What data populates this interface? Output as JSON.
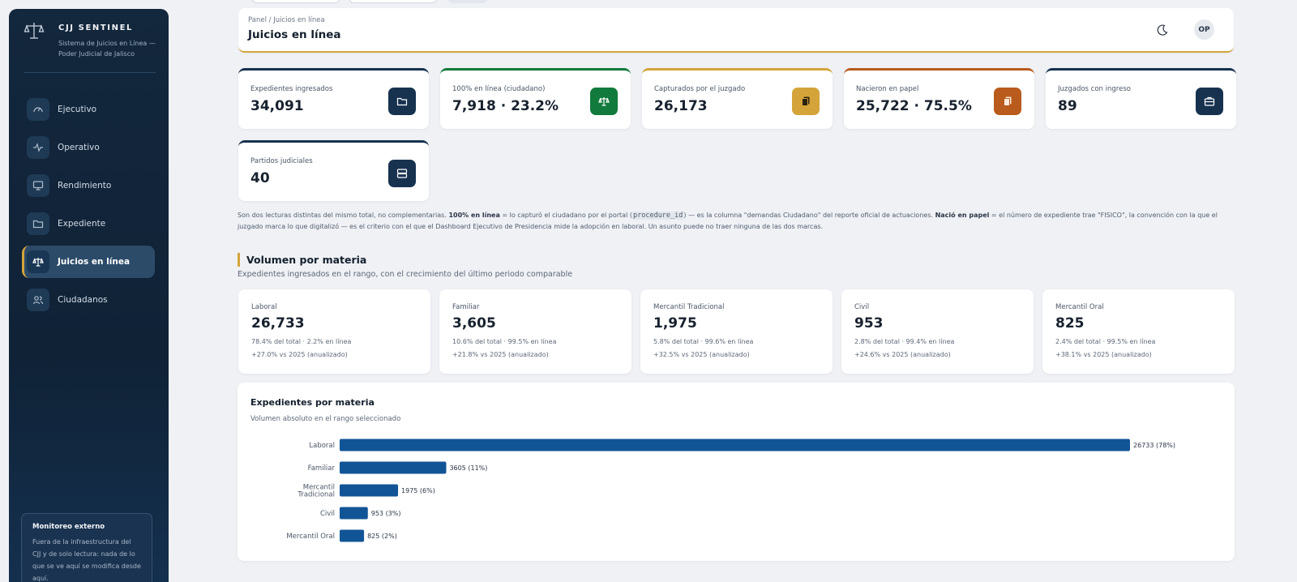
{
  "sidebar": {
    "brand_name": "CJJ SENTINEL",
    "brand_sub": "Sistema de Juicios en Línea — Poder Judicial de Jalisco",
    "items": [
      {
        "label": "Ejecutivo",
        "icon": "gauge-icon"
      },
      {
        "label": "Operativo",
        "icon": "pulse-icon"
      },
      {
        "label": "Rendimiento",
        "icon": "monitor-icon"
      },
      {
        "label": "Expediente",
        "icon": "folder-icon"
      },
      {
        "label": "Juicios en línea",
        "icon": "scale-icon",
        "active": true
      },
      {
        "label": "Ciudadanos",
        "icon": "users-icon"
      }
    ],
    "note": {
      "title": "Monitoreo externo",
      "text": "Fuera de la infraestructura del CJJ y de solo lectura: nada de lo que se ve aquí se modifica desde aquí."
    }
  },
  "header": {
    "breadcrumb": "Panel / Juicios en línea",
    "title": "Juicios en línea",
    "avatar": "OP"
  },
  "kpis": [
    {
      "label": "Expedientes ingresados",
      "value": "34,091",
      "accent": "#17324f",
      "icon": "folder-icon"
    },
    {
      "label": "100% en línea (ciudadano)",
      "value": "7,918 · 23.2%",
      "accent": "#127a3c",
      "icon": "scale-icon"
    },
    {
      "label": "Capturados por el juzgado",
      "value": "26,173",
      "accent": "#d4a43a",
      "icon": "copy-icon"
    },
    {
      "label": "Nacieron en papel",
      "value": "25,722 · 75.5%",
      "accent": "#b95b1c",
      "icon": "copy-icon"
    },
    {
      "label": "Juzgados con ingreso",
      "value": "89",
      "accent": "#17324f",
      "icon": "briefcase-icon"
    },
    {
      "label": "Partidos judiciales",
      "value": "40",
      "accent": "#17324f",
      "icon": "server-icon"
    }
  ],
  "explain": {
    "p1": "Son dos lecturas distintas del mismo total, no complementarias. ",
    "b1": "100% en línea",
    "p2": " = lo capturó el ciudadano por el portal (",
    "code": "procedure_id",
    "p3": ") — es la columna \"demandas Ciudadano\" del reporte oficial de actuaciones. ",
    "b2": "Nació en papel",
    "p4": " = el número de expediente trae \"FISICO\", la convención con la que el juzgado marca lo que digitalizó — es el criterio con el que el Dashboard Ejecutivo de Presidencia mide la adopción en laboral. Un asunto puede no traer ninguna de las dos marcas."
  },
  "section": {
    "title": "Volumen por materia",
    "subtitle": "Expedientes ingresados en el rango, con el crecimiento del último periodo comparable"
  },
  "materias": [
    {
      "label": "Laboral",
      "value": "26,733",
      "line1": "78.4% del total · 2.2% en línea",
      "line2": "+27.0% vs 2025 (anualizado)"
    },
    {
      "label": "Familiar",
      "value": "3,605",
      "line1": "10.6% del total · 99.5% en línea",
      "line2": "+21.8% vs 2025 (anualizado)"
    },
    {
      "label": "Mercantil Tradicional",
      "value": "1,975",
      "line1": "5.8% del total · 99.6% en línea",
      "line2": "+32.5% vs 2025 (anualizado)"
    },
    {
      "label": "Civil",
      "value": "953",
      "line1": "2.8% del total · 99.4% en línea",
      "line2": "+24.6% vs 2025 (anualizado)"
    },
    {
      "label": "Mercantil Oral",
      "value": "825",
      "line1": "2.4% del total · 99.5% en línea",
      "line2": "+38.1% vs 2025 (anualizado)"
    }
  ],
  "chart": {
    "title": "Expedientes por materia",
    "subtitle": "Volumen absoluto en el rango seleccionado"
  },
  "chart_data": {
    "type": "bar",
    "orientation": "horizontal",
    "categories": [
      [
        "Laboral"
      ],
      [
        "Familiar"
      ],
      [
        "Mercantil",
        "Tradicional"
      ],
      [
        "Civil"
      ],
      [
        "Mercantil Oral"
      ]
    ],
    "values": [
      26733,
      3605,
      1975,
      953,
      825
    ],
    "data_labels": [
      "26733 (78%)",
      "3605 (11%)",
      "1975 (6%)",
      "953 (3%)",
      "825 (2%)"
    ],
    "bar_color": "#125596",
    "grid": false
  }
}
